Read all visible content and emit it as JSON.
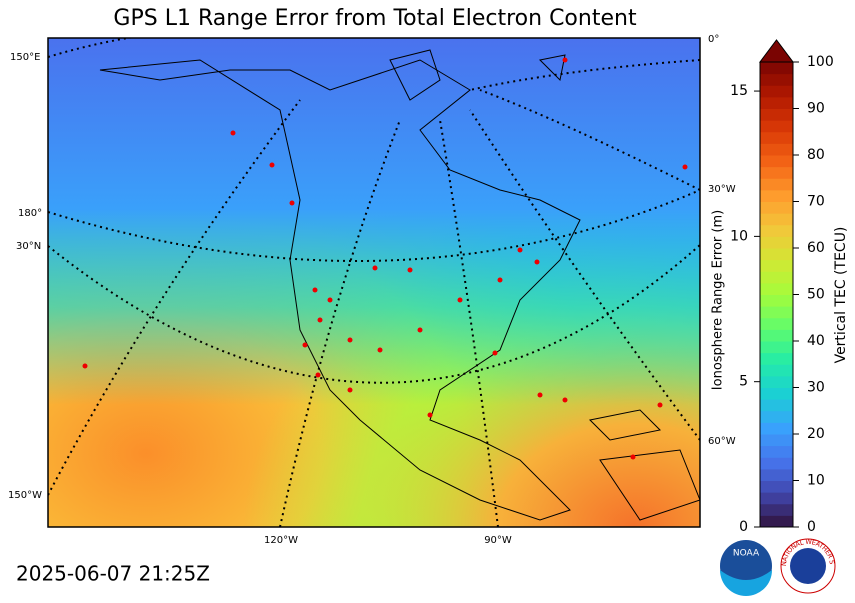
{
  "title": "GPS L1 Range Error from Total Electron Content",
  "timestamp": "2025-06-07 21:25Z",
  "graticule_labels": [
    "150°E",
    "180°",
    "30°N",
    "150°W",
    "120°W",
    "90°W",
    "0°",
    "30°W",
    "60°W"
  ],
  "logos": {
    "noaa": "NOAA",
    "nws": "NATIONAL WEATHER SERVICE"
  },
  "colorbar": {
    "range_label": "Ionosphere Range Error (m)",
    "range_lim": [
      0,
      16
    ],
    "range_ticks": [
      0,
      5,
      10,
      15
    ],
    "tec_label": "Vertical TEC (TECU)",
    "tec_lim": [
      0,
      100
    ],
    "tec_ticks": [
      0,
      10,
      20,
      30,
      40,
      50,
      60,
      70,
      80,
      90,
      100
    ],
    "colors": [
      "#30123b",
      "#4145ab",
      "#4675ed",
      "#39a2fc",
      "#1bcfd4",
      "#24eca6",
      "#61fc6c",
      "#a4fc3b",
      "#d1e834",
      "#f3c63a",
      "#fe9b2d",
      "#f36315",
      "#d93806",
      "#b11901",
      "#7a0402"
    ]
  }
}
